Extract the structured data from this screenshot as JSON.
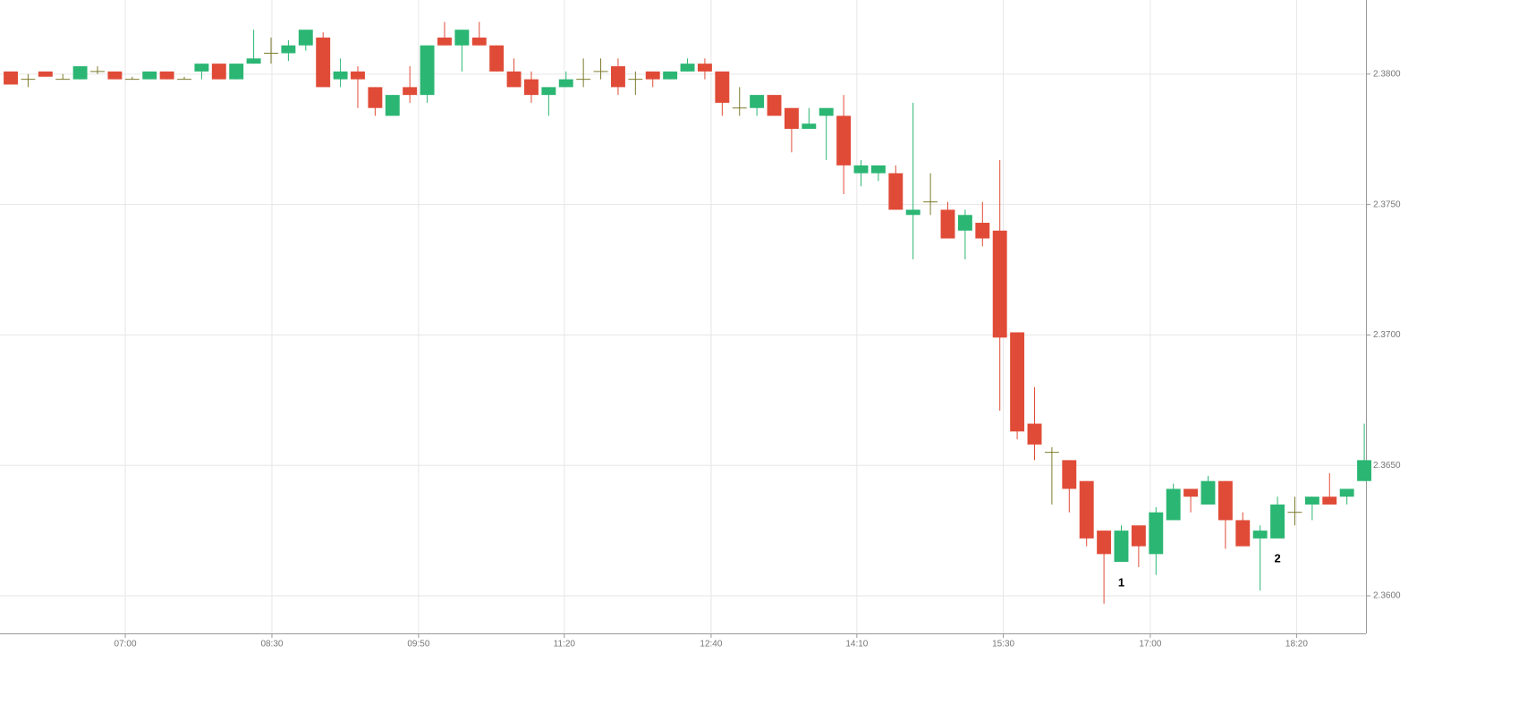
{
  "chart_data": {
    "type": "candlestick",
    "up_color": "#2bb673",
    "down_color": "#e04b37",
    "doji_color": "#7d7a2c",
    "grid": true,
    "xlim": [
      -0.62,
      78.1
    ],
    "xticks": [
      {
        "value": 6.6,
        "label": "07:00"
      },
      {
        "value": 15.05,
        "label": "08:30"
      },
      {
        "value": 23.5,
        "label": "09:50"
      },
      {
        "value": 31.9,
        "label": "11:20"
      },
      {
        "value": 40.36,
        "label": "12:40"
      },
      {
        "value": 48.76,
        "label": "14:10"
      },
      {
        "value": 57.2,
        "label": "15:30"
      },
      {
        "value": 65.67,
        "label": "17:00"
      },
      {
        "value": 74.1,
        "label": "18:20"
      }
    ],
    "ylim": [
      2.35856,
      2.38284
    ],
    "yticks": [
      {
        "value": 2.36,
        "label": "2.3600"
      },
      {
        "value": 2.365,
        "label": "2.3650"
      },
      {
        "value": 2.37,
        "label": "2.3700"
      },
      {
        "value": 2.375,
        "label": "2.3750"
      },
      {
        "value": 2.38,
        "label": "2.3800"
      }
    ],
    "open": [
      2.3801,
      2.3798,
      2.3801,
      2.3798,
      2.3798,
      2.3801,
      2.3801,
      2.3798,
      2.3798,
      2.3801,
      2.3798,
      2.3801,
      2.3804,
      2.3798,
      2.3804,
      2.3808,
      2.3808,
      2.3811,
      2.3814,
      2.3798,
      2.3801,
      2.3795,
      2.3784,
      2.3795,
      2.3792,
      2.3814,
      2.3811,
      2.3814,
      2.3811,
      2.3801,
      2.3798,
      2.3792,
      2.3795,
      2.3798,
      2.3801,
      2.3803,
      2.3798,
      2.3801,
      2.3798,
      2.3801,
      2.3804,
      2.3801,
      2.3787,
      2.3787,
      2.3792,
      2.3787,
      2.3779,
      2.3784,
      2.3784,
      2.3762,
      2.3762,
      2.3762,
      2.3746,
      2.3751,
      2.3748,
      2.374,
      2.3743,
      2.374,
      2.3701,
      2.3666,
      2.3655,
      2.3652,
      2.3644,
      2.3625,
      2.3613,
      2.3627,
      2.3616,
      2.3629,
      2.3641,
      2.3635,
      2.3644,
      2.3629,
      2.3622,
      2.3622,
      2.3632,
      2.3635,
      2.3638,
      2.3638,
      2.3644
    ],
    "high": [
      2.3801,
      2.38,
      2.3801,
      2.38,
      2.3803,
      2.3803,
      2.3801,
      2.3799,
      2.3801,
      2.3801,
      2.3799,
      2.3804,
      2.3804,
      2.3804,
      2.3817,
      2.3814,
      2.3813,
      2.3817,
      2.3816,
      2.3806,
      2.3803,
      2.3795,
      2.3792,
      2.3803,
      2.3811,
      2.382,
      2.3817,
      2.382,
      2.3811,
      2.3806,
      2.3801,
      2.3795,
      2.3801,
      2.3806,
      2.3806,
      2.3806,
      2.3801,
      2.3801,
      2.3801,
      2.3806,
      2.3806,
      2.3801,
      2.3795,
      2.3792,
      2.3792,
      2.3787,
      2.3787,
      2.3787,
      2.3792,
      2.3767,
      2.3765,
      2.3765,
      2.3789,
      2.3762,
      2.3751,
      2.3748,
      2.3751,
      2.3767,
      2.3701,
      2.368,
      2.3657,
      2.3652,
      2.3644,
      2.3625,
      2.3627,
      2.3627,
      2.3634,
      2.3643,
      2.3641,
      2.3646,
      2.3644,
      2.3632,
      2.3627,
      2.3638,
      2.3638,
      2.3638,
      2.3647,
      2.3641,
      2.3666
    ],
    "low": [
      2.3796,
      2.3795,
      2.3799,
      2.3798,
      2.3798,
      2.38,
      2.3798,
      2.3798,
      2.3798,
      2.3798,
      2.3798,
      2.3798,
      2.3798,
      2.3798,
      2.3804,
      2.3804,
      2.3805,
      2.3809,
      2.3795,
      2.3795,
      2.3787,
      2.3784,
      2.3784,
      2.3789,
      2.3789,
      2.3811,
      2.3801,
      2.3811,
      2.3801,
      2.3795,
      2.3789,
      2.3784,
      2.3795,
      2.3795,
      2.3798,
      2.3792,
      2.3792,
      2.3795,
      2.3798,
      2.3801,
      2.3798,
      2.3784,
      2.3784,
      2.3784,
      2.3784,
      2.377,
      2.3779,
      2.3767,
      2.3754,
      2.3757,
      2.3759,
      2.3748,
      2.3729,
      2.3746,
      2.3737,
      2.3729,
      2.3734,
      2.3671,
      2.366,
      2.3652,
      2.3635,
      2.3632,
      2.3619,
      2.3597,
      2.3613,
      2.3611,
      2.3608,
      2.3629,
      2.3632,
      2.3635,
      2.3618,
      2.3619,
      2.3602,
      2.3622,
      2.3627,
      2.3629,
      2.3635,
      2.3635,
      2.3644
    ],
    "close": [
      2.3796,
      2.3798,
      2.3799,
      2.3798,
      2.3803,
      2.3801,
      2.3798,
      2.3798,
      2.3801,
      2.3798,
      2.3798,
      2.3804,
      2.3798,
      2.3804,
      2.3806,
      2.3808,
      2.3811,
      2.3817,
      2.3795,
      2.3801,
      2.3798,
      2.3787,
      2.3792,
      2.3792,
      2.3811,
      2.3811,
      2.3817,
      2.3811,
      2.3801,
      2.3795,
      2.3792,
      2.3795,
      2.3798,
      2.3798,
      2.3801,
      2.3795,
      2.3798,
      2.3798,
      2.3801,
      2.3804,
      2.3801,
      2.3789,
      2.3787,
      2.3792,
      2.3784,
      2.3779,
      2.3781,
      2.3787,
      2.3765,
      2.3765,
      2.3765,
      2.3748,
      2.3748,
      2.3751,
      2.3737,
      2.3746,
      2.3737,
      2.3699,
      2.3663,
      2.3658,
      2.3655,
      2.3641,
      2.3622,
      2.3616,
      2.3625,
      2.3619,
      2.3632,
      2.3641,
      2.3638,
      2.3644,
      2.3629,
      2.3619,
      2.3625,
      2.3635,
      2.3632,
      2.3638,
      2.3635,
      2.3641,
      2.3652
    ],
    "annotations": [
      {
        "text": "1",
        "x": 64,
        "y": 2.36048
      },
      {
        "text": "2",
        "x": 73,
        "y": 2.3614
      }
    ]
  }
}
